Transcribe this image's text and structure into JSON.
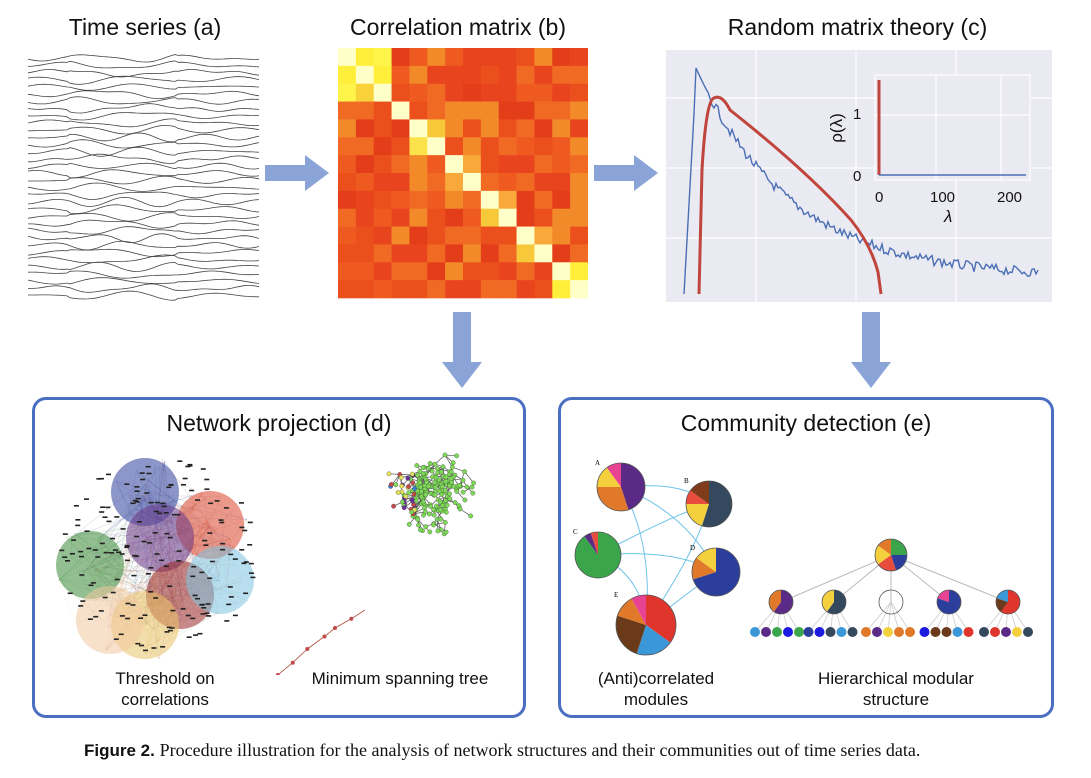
{
  "titles": {
    "time_series": "Time series (a)",
    "correlation_matrix": "Correlation matrix (b)",
    "random_matrix": "Random matrix theory (c)",
    "network_projection": "Network projection (d)",
    "community_detection": "Community detection (e)"
  },
  "rmt_inset": {
    "ylabel": "ρ(λ)",
    "xlabel": "λ",
    "y_ticks": [
      "1",
      "0"
    ],
    "x_ticks": [
      "0",
      "100",
      "200"
    ]
  },
  "network_labels": {
    "threshold": "Threshold on correlations",
    "mst": "Minimum spanning tree"
  },
  "community_labels": {
    "modules": "(Anti)correlated modules",
    "hierarchical": "Hierarchical modular structure",
    "module_letters": [
      "A",
      "B",
      "C",
      "D",
      "E"
    ]
  },
  "caption": {
    "figure": "Figure 2.",
    "text": "Procedure illustration for the analysis of network structures and their communities out of time series data."
  },
  "colors": {
    "arrow": "#8aa4d8",
    "panel_border": "#4a6fc0",
    "curve_blue": "#4b6fb5",
    "curve_red": "#c0453c"
  }
}
